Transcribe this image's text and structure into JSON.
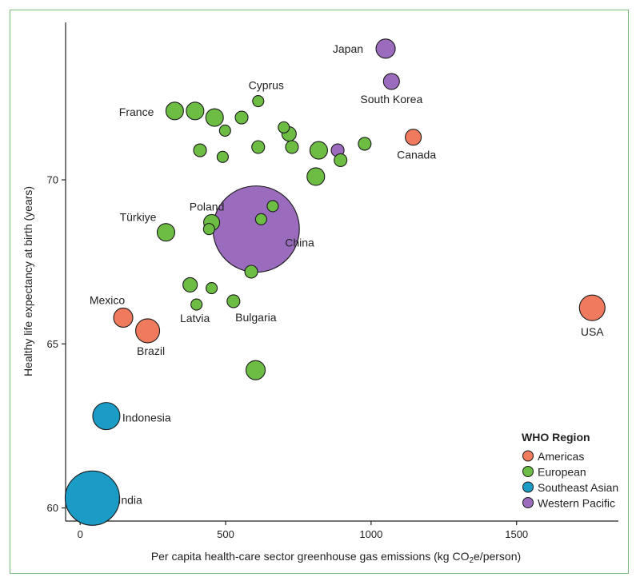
{
  "chart_data": {
    "type": "scatter",
    "xlabel": "Per capita health-care sector greenhouse gas emissions (kg CO₂e/person)",
    "ylabel": "Healthy life expectancy at birth (years)",
    "xlim": [
      -50,
      1850
    ],
    "ylim": [
      59.6,
      74.8
    ],
    "xticks": [
      "0",
      "500",
      "1000",
      "1500"
    ],
    "yticks": [
      "60",
      "65",
      "70"
    ],
    "legend": {
      "title": "WHO Region",
      "position": "bottom-right",
      "entries": [
        {
          "label": "Americas",
          "color": "#f07a5e"
        },
        {
          "label": "European",
          "color": "#6dbd45"
        },
        {
          "label": "Southeast Asian",
          "color": "#1a9cc6"
        },
        {
          "label": "Western Pacific",
          "color": "#9b6bbd"
        }
      ]
    },
    "points": [
      {
        "x": 1050,
        "y": 74.0,
        "size": 12,
        "region": "Western Pacific",
        "label": "Japan"
      },
      {
        "x": 1070,
        "y": 73.0,
        "size": 10,
        "region": "Western Pacific",
        "label": "South Korea"
      },
      {
        "x": 1145,
        "y": 71.3,
        "size": 10,
        "region": "Americas",
        "label": "Canada"
      },
      {
        "x": 885,
        "y": 70.9,
        "size": 8,
        "region": "Western Pacific",
        "label": ""
      },
      {
        "x": 605,
        "y": 68.5,
        "size": 54,
        "region": "Western Pacific",
        "label": "China"
      },
      {
        "x": 1760,
        "y": 66.1,
        "size": 16,
        "region": "Americas",
        "label": "USA"
      },
      {
        "x": 148,
        "y": 65.8,
        "size": 12,
        "region": "Americas",
        "label": "Mexico"
      },
      {
        "x": 232,
        "y": 65.4,
        "size": 15,
        "region": "Americas",
        "label": "Brazil"
      },
      {
        "x": 90,
        "y": 62.8,
        "size": 17,
        "region": "Southeast Asian",
        "label": "Indonesia"
      },
      {
        "x": 42,
        "y": 60.3,
        "size": 34,
        "region": "Southeast Asian",
        "label": "India"
      },
      {
        "x": 612,
        "y": 72.4,
        "size": 7,
        "region": "European",
        "label": "Cyprus"
      },
      {
        "x": 325,
        "y": 72.1,
        "size": 11,
        "region": "European",
        "label": "France"
      },
      {
        "x": 395,
        "y": 72.1,
        "size": 11,
        "region": "European",
        "label": ""
      },
      {
        "x": 462,
        "y": 71.9,
        "size": 11,
        "region": "European",
        "label": ""
      },
      {
        "x": 555,
        "y": 71.9,
        "size": 8,
        "region": "European",
        "label": ""
      },
      {
        "x": 498,
        "y": 71.5,
        "size": 7,
        "region": "European",
        "label": ""
      },
      {
        "x": 700,
        "y": 71.6,
        "size": 7,
        "region": "European",
        "label": ""
      },
      {
        "x": 718,
        "y": 71.4,
        "size": 9,
        "region": "European",
        "label": ""
      },
      {
        "x": 412,
        "y": 70.9,
        "size": 8,
        "region": "European",
        "label": ""
      },
      {
        "x": 490,
        "y": 70.7,
        "size": 7,
        "region": "European",
        "label": ""
      },
      {
        "x": 612,
        "y": 71.0,
        "size": 8,
        "region": "European",
        "label": ""
      },
      {
        "x": 728,
        "y": 71.0,
        "size": 8,
        "region": "European",
        "label": ""
      },
      {
        "x": 820,
        "y": 70.9,
        "size": 11,
        "region": "European",
        "label": ""
      },
      {
        "x": 978,
        "y": 71.1,
        "size": 8,
        "region": "European",
        "label": ""
      },
      {
        "x": 895,
        "y": 70.6,
        "size": 8,
        "region": "European",
        "label": ""
      },
      {
        "x": 810,
        "y": 70.1,
        "size": 11,
        "region": "European",
        "label": ""
      },
      {
        "x": 662,
        "y": 69.2,
        "size": 7,
        "region": "European",
        "label": ""
      },
      {
        "x": 622,
        "y": 68.8,
        "size": 7,
        "region": "European",
        "label": ""
      },
      {
        "x": 452,
        "y": 68.7,
        "size": 10,
        "region": "European",
        "label": "Poland"
      },
      {
        "x": 443,
        "y": 68.5,
        "size": 7,
        "region": "European",
        "label": ""
      },
      {
        "x": 295,
        "y": 68.4,
        "size": 11,
        "region": "European",
        "label": "Türkiye"
      },
      {
        "x": 588,
        "y": 67.2,
        "size": 8,
        "region": "European",
        "label": ""
      },
      {
        "x": 378,
        "y": 66.8,
        "size": 9,
        "region": "European",
        "label": ""
      },
      {
        "x": 452,
        "y": 66.7,
        "size": 7,
        "region": "European",
        "label": ""
      },
      {
        "x": 527,
        "y": 66.3,
        "size": 8,
        "region": "European",
        "label": "Bulgaria"
      },
      {
        "x": 400,
        "y": 66.2,
        "size": 7,
        "region": "European",
        "label": "Latvia"
      },
      {
        "x": 603,
        "y": 64.2,
        "size": 12,
        "region": "European",
        "label": ""
      }
    ]
  }
}
